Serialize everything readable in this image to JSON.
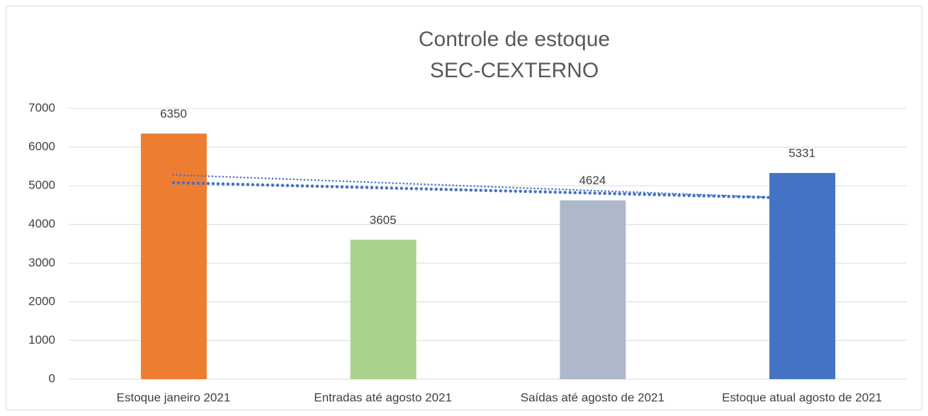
{
  "chart_data": {
    "type": "bar",
    "title": [
      "Controle de estoque",
      "SEC-CEXTERNO"
    ],
    "categories": [
      "Estoque janeiro 2021",
      "Entradas até agosto 2021",
      "Saídas até agosto de 2021",
      "Estoque atual agosto de 2021"
    ],
    "values": [
      6350,
      3605,
      4624,
      5331
    ],
    "colors": [
      "#ed7d31",
      "#a9d18e",
      "#adb9ca",
      "#4472c4"
    ],
    "ylim": [
      0,
      7000
    ],
    "yticks": [
      0,
      1000,
      2000,
      3000,
      4000,
      5000,
      6000,
      7000
    ],
    "grid": true,
    "trendlines": [
      {
        "kind": "linear",
        "color": "#4472c4"
      },
      {
        "kind": "exponential",
        "color": "#4472c4"
      }
    ]
  }
}
